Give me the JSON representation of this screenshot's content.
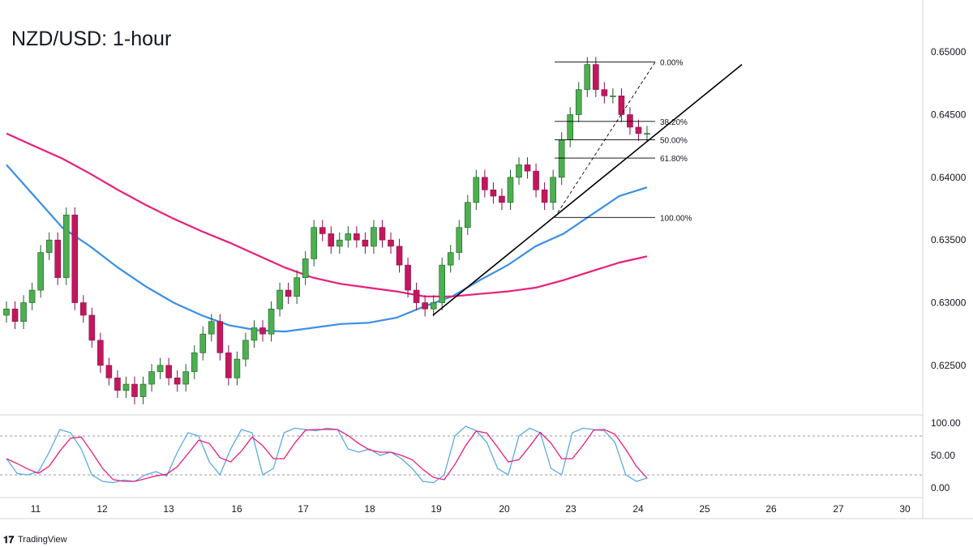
{
  "brand": "TradingView",
  "colors": {
    "up_candle": "#26a69a",
    "up_candle_fill": "#4caf50",
    "down_candle": "#c2185b",
    "ma_fast": "#3a8ee6",
    "ma_slow": "#e91e7a",
    "stoch_k": "#5aa9e6",
    "stoch_d": "#e91e7a",
    "trendline": "#000000",
    "fib": "#000000"
  },
  "chart_data": {
    "type": "candlestick",
    "title": "NZD/USD: 1-hour",
    "price_axis": {
      "ticks": [
        "0.65000",
        "0.64500",
        "0.64000",
        "0.63500",
        "0.63000",
        "0.62500"
      ],
      "tick_values": [
        0.65,
        0.645,
        0.64,
        0.635,
        0.63,
        0.625
      ],
      "ylim": [
        0.6215,
        0.6535
      ]
    },
    "time_axis": {
      "labels": [
        "11",
        "12",
        "13",
        "16",
        "17",
        "18",
        "19",
        "20",
        "23",
        "24",
        "25",
        "26",
        "27",
        "30"
      ]
    },
    "candles_close_path": [
      [
        "11",
        0.6295
      ],
      [
        "11",
        0.6285
      ],
      [
        "11",
        0.63
      ],
      [
        "11",
        0.631
      ],
      [
        "11.5",
        0.634
      ],
      [
        "11.5",
        0.635
      ],
      [
        "11.5",
        0.632
      ],
      [
        "11.5",
        0.637
      ],
      [
        "12",
        0.63
      ],
      [
        "12",
        0.629
      ],
      [
        "12",
        0.627
      ],
      [
        "12",
        0.625
      ],
      [
        "12.5",
        0.624
      ],
      [
        "12.5",
        0.623
      ],
      [
        "12.5",
        0.6235
      ],
      [
        "12.5",
        0.6225
      ],
      [
        "13",
        0.6235
      ],
      [
        "13",
        0.6245
      ],
      [
        "13",
        0.625
      ],
      [
        "13",
        0.624
      ],
      [
        "13.5",
        0.6235
      ],
      [
        "13.5",
        0.6245
      ],
      [
        "13.5",
        0.626
      ],
      [
        "13.5",
        0.6275
      ],
      [
        "16",
        0.6285
      ],
      [
        "16",
        0.626
      ],
      [
        "16",
        0.624
      ],
      [
        "16",
        0.6255
      ],
      [
        "16.5",
        0.627
      ],
      [
        "16.5",
        0.628
      ],
      [
        "16.5",
        0.6275
      ],
      [
        "16.5",
        0.6295
      ],
      [
        "17",
        0.631
      ],
      [
        "17",
        0.6305
      ],
      [
        "17",
        0.632
      ],
      [
        "17",
        0.6335
      ],
      [
        "17.5",
        0.636
      ],
      [
        "17.5",
        0.6355
      ],
      [
        "17.5",
        0.6345
      ],
      [
        "17.5",
        0.635
      ],
      [
        "18",
        0.6355
      ],
      [
        "18",
        0.635
      ],
      [
        "18",
        0.6345
      ],
      [
        "18",
        0.636
      ],
      [
        "18.5",
        0.635
      ],
      [
        "18.5",
        0.6345
      ],
      [
        "18.5",
        0.633
      ],
      [
        "18.5",
        0.631
      ],
      [
        "19",
        0.63
      ],
      [
        "19",
        0.6295
      ],
      [
        "19",
        0.63
      ],
      [
        "19",
        0.633
      ],
      [
        "19.5",
        0.634
      ],
      [
        "19.5",
        0.636
      ],
      [
        "19.5",
        0.638
      ],
      [
        "19.5",
        0.64
      ],
      [
        "20",
        0.639
      ],
      [
        "20",
        0.6385
      ],
      [
        "20",
        0.638
      ],
      [
        "20",
        0.64
      ],
      [
        "20.5",
        0.641
      ],
      [
        "20.5",
        0.6405
      ],
      [
        "20.5",
        0.639
      ],
      [
        "20.5",
        0.638
      ],
      [
        "23",
        0.64
      ],
      [
        "23",
        0.643
      ],
      [
        "23",
        0.645
      ],
      [
        "23",
        0.647
      ],
      [
        "23.5",
        0.649
      ],
      [
        "23.5",
        0.647
      ],
      [
        "23.5",
        0.6465
      ],
      [
        "23.5",
        0.6465
      ],
      [
        "24",
        0.645
      ],
      [
        "24",
        0.644
      ],
      [
        "24",
        0.6435
      ],
      [
        "24",
        0.6435
      ]
    ],
    "moving_averages": [
      {
        "color_key": "ma_fast",
        "values": [
          0.641,
          0.6385,
          0.636,
          0.6345,
          0.6328,
          0.6313,
          0.63,
          0.629,
          0.6282,
          0.6278,
          0.6277,
          0.628,
          0.6283,
          0.6284,
          0.6288,
          0.6297,
          0.6305,
          0.6318,
          0.633,
          0.6345,
          0.6355,
          0.637,
          0.6385,
          0.6392
        ]
      },
      {
        "color_key": "ma_slow",
        "values": [
          0.6435,
          0.6425,
          0.6415,
          0.6403,
          0.639,
          0.6378,
          0.6367,
          0.6357,
          0.6348,
          0.6338,
          0.6328,
          0.632,
          0.6315,
          0.6312,
          0.6309,
          0.6305,
          0.6305,
          0.6307,
          0.6309,
          0.6312,
          0.6318,
          0.6325,
          0.6332,
          0.6337
        ]
      }
    ],
    "fibonacci": {
      "levels": [
        "0.00%",
        "38.20%",
        "50.00%",
        "61.80%",
        "100.00%"
      ],
      "high": 0.6492,
      "low": 0.6368
    },
    "trendline": {
      "from": [
        "19",
        0.629
      ],
      "to": [
        "25",
        0.649
      ]
    },
    "oscillator": {
      "ticks": [
        "100.00",
        "50.00",
        "0.00"
      ],
      "tick_values": [
        100,
        50,
        0
      ],
      "levels": [
        80,
        20
      ],
      "k_values": [
        45,
        22,
        20,
        25,
        55,
        90,
        85,
        60,
        20,
        10,
        8,
        12,
        10,
        20,
        25,
        18,
        55,
        85,
        80,
        40,
        20,
        60,
        90,
        85,
        20,
        30,
        85,
        92,
        90,
        88,
        92,
        90,
        60,
        55,
        60,
        50,
        55,
        45,
        30,
        10,
        8,
        20,
        80,
        95,
        88,
        70,
        30,
        20,
        80,
        92,
        85,
        30,
        20,
        85,
        92,
        90,
        88,
        70,
        20,
        10,
        15
      ]
    }
  }
}
